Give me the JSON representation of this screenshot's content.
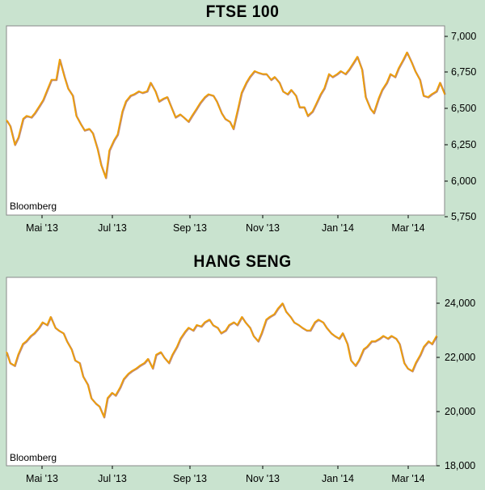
{
  "chart_data": [
    {
      "type": "line",
      "title": "FTSE 100",
      "source": "Bloomberg",
      "x_ticks": [
        "Mai '13",
        "Jul '13",
        "Sep '13",
        "Nov '13",
        "Jan '14",
        "Mar '14"
      ],
      "y_ticks": [
        "7,000",
        "6,750",
        "6,500",
        "6,250",
        "6,000",
        "5,750"
      ],
      "ylim": [
        5750,
        7000
      ],
      "grid": false,
      "line_color": "#f0a000",
      "x": [
        "2013-04-01",
        "2013-04-04",
        "2013-04-08",
        "2013-04-11",
        "2013-04-15",
        "2013-04-18",
        "2013-04-22",
        "2013-04-25",
        "2013-04-29",
        "2013-05-02",
        "2013-05-06",
        "2013-05-09",
        "2013-05-13",
        "2013-05-16",
        "2013-05-20",
        "2013-05-23",
        "2013-05-27",
        "2013-05-30",
        "2013-06-03",
        "2013-06-06",
        "2013-06-10",
        "2013-06-13",
        "2013-06-17",
        "2013-06-20",
        "2013-06-24",
        "2013-06-27",
        "2013-07-01",
        "2013-07-04",
        "2013-07-08",
        "2013-07-11",
        "2013-07-15",
        "2013-07-18",
        "2013-07-22",
        "2013-07-25",
        "2013-07-29",
        "2013-08-01",
        "2013-08-05",
        "2013-08-08",
        "2013-08-12",
        "2013-08-15",
        "2013-08-19",
        "2013-08-22",
        "2013-08-26",
        "2013-08-29",
        "2013-09-02",
        "2013-09-05",
        "2013-09-09",
        "2013-09-12",
        "2013-09-16",
        "2013-09-19",
        "2013-09-23",
        "2013-09-26",
        "2013-09-30",
        "2013-10-03",
        "2013-10-07",
        "2013-10-10",
        "2013-10-14",
        "2013-10-17",
        "2013-10-21",
        "2013-10-24",
        "2013-10-28",
        "2013-10-31",
        "2013-11-04",
        "2013-11-07",
        "2013-11-11",
        "2013-11-14",
        "2013-11-18",
        "2013-11-21",
        "2013-11-25",
        "2013-11-28",
        "2013-12-02",
        "2013-12-05",
        "2013-12-09",
        "2013-12-12",
        "2013-12-16",
        "2013-12-19",
        "2013-12-23",
        "2013-12-26",
        "2013-12-30",
        "2014-01-02",
        "2014-01-06",
        "2014-01-09",
        "2014-01-13",
        "2014-01-16",
        "2014-01-20",
        "2014-01-23",
        "2014-01-27",
        "2014-01-30",
        "2014-02-03",
        "2014-02-06",
        "2014-02-10",
        "2014-02-13",
        "2014-02-17",
        "2014-02-20",
        "2014-02-24",
        "2014-02-27",
        "2014-03-03",
        "2014-03-06",
        "2014-03-10",
        "2014-03-13",
        "2014-03-17",
        "2014-03-20",
        "2014-03-24",
        "2014-03-27",
        "2014-03-31",
        "2014-04-03",
        "2014-04-07"
      ],
      "values": [
        6420,
        6380,
        6250,
        6300,
        6430,
        6450,
        6440,
        6470,
        6520,
        6560,
        6640,
        6700,
        6700,
        6840,
        6720,
        6640,
        6590,
        6450,
        6390,
        6350,
        6360,
        6330,
        6220,
        6110,
        6020,
        6210,
        6280,
        6320,
        6480,
        6550,
        6590,
        6600,
        6620,
        6610,
        6620,
        6680,
        6620,
        6550,
        6570,
        6580,
        6500,
        6440,
        6460,
        6440,
        6410,
        6450,
        6500,
        6540,
        6580,
        6600,
        6590,
        6550,
        6470,
        6430,
        6410,
        6360,
        6500,
        6610,
        6680,
        6720,
        6760,
        6750,
        6740,
        6740,
        6700,
        6720,
        6680,
        6620,
        6600,
        6630,
        6590,
        6510,
        6510,
        6450,
        6480,
        6530,
        6600,
        6640,
        6740,
        6720,
        6740,
        6760,
        6740,
        6770,
        6820,
        6860,
        6770,
        6580,
        6500,
        6470,
        6570,
        6630,
        6680,
        6740,
        6720,
        6780,
        6840,
        6890,
        6820,
        6760,
        6700,
        6590,
        6580,
        6600,
        6620,
        6680,
        6600
      ]
    },
    {
      "type": "line",
      "title": "HANG SENG",
      "source": "Bloomberg",
      "x_ticks": [
        "Mai '13",
        "Jul '13",
        "Sep '13",
        "Nov '13",
        "Jan '14",
        "Mar '14"
      ],
      "y_ticks": [
        "24,000",
        "22,000",
        "20,000",
        "18,000"
      ],
      "ylim": [
        18000,
        24500
      ],
      "grid": false,
      "line_color": "#f0a000",
      "x": [
        "2013-04-01",
        "2013-04-04",
        "2013-04-08",
        "2013-04-11",
        "2013-04-15",
        "2013-04-18",
        "2013-04-22",
        "2013-04-25",
        "2013-04-29",
        "2013-05-02",
        "2013-05-06",
        "2013-05-09",
        "2013-05-13",
        "2013-05-16",
        "2013-05-20",
        "2013-05-23",
        "2013-05-27",
        "2013-05-30",
        "2013-06-03",
        "2013-06-06",
        "2013-06-10",
        "2013-06-13",
        "2013-06-17",
        "2013-06-20",
        "2013-06-24",
        "2013-06-27",
        "2013-07-01",
        "2013-07-04",
        "2013-07-08",
        "2013-07-11",
        "2013-07-15",
        "2013-07-18",
        "2013-07-22",
        "2013-07-25",
        "2013-07-29",
        "2013-08-01",
        "2013-08-05",
        "2013-08-08",
        "2013-08-12",
        "2013-08-15",
        "2013-08-19",
        "2013-08-22",
        "2013-08-26",
        "2013-08-29",
        "2013-09-02",
        "2013-09-05",
        "2013-09-09",
        "2013-09-12",
        "2013-09-16",
        "2013-09-19",
        "2013-09-23",
        "2013-09-26",
        "2013-09-30",
        "2013-10-03",
        "2013-10-07",
        "2013-10-10",
        "2013-10-14",
        "2013-10-17",
        "2013-10-21",
        "2013-10-24",
        "2013-10-28",
        "2013-10-31",
        "2013-11-04",
        "2013-11-07",
        "2013-11-11",
        "2013-11-14",
        "2013-11-18",
        "2013-11-21",
        "2013-11-25",
        "2013-11-28",
        "2013-12-02",
        "2013-12-05",
        "2013-12-09",
        "2013-12-12",
        "2013-12-16",
        "2013-12-19",
        "2013-12-23",
        "2013-12-26",
        "2013-12-30",
        "2014-01-02",
        "2014-01-06",
        "2014-01-09",
        "2014-01-13",
        "2014-01-16",
        "2014-01-20",
        "2014-01-23",
        "2014-01-27",
        "2014-01-30",
        "2014-02-03",
        "2014-02-06",
        "2014-02-10",
        "2014-02-13",
        "2014-02-17",
        "2014-02-20",
        "2014-02-24",
        "2014-02-27",
        "2014-03-03",
        "2014-03-06",
        "2014-03-10",
        "2014-03-13",
        "2014-03-17",
        "2014-03-20",
        "2014-03-24",
        "2014-03-27",
        "2014-03-31",
        "2014-04-03",
        "2014-04-07"
      ],
      "values": [
        22200,
        21800,
        21700,
        22100,
        22500,
        22600,
        22800,
        22900,
        23100,
        23300,
        23200,
        23500,
        23100,
        23000,
        22900,
        22600,
        22300,
        21900,
        21800,
        21300,
        21000,
        20500,
        20300,
        20200,
        19800,
        20500,
        20700,
        20600,
        20900,
        21200,
        21400,
        21500,
        21600,
        21700,
        21800,
        21950,
        21600,
        22100,
        22200,
        22000,
        21800,
        22100,
        22400,
        22700,
        22950,
        23100,
        23000,
        23200,
        23150,
        23300,
        23400,
        23200,
        23100,
        22900,
        23000,
        23200,
        23300,
        23200,
        23500,
        23300,
        23100,
        22800,
        22600,
        22900,
        23400,
        23500,
        23600,
        23800,
        24000,
        23700,
        23500,
        23300,
        23200,
        23100,
        23000,
        23000,
        23300,
        23400,
        23300,
        23100,
        22900,
        22800,
        22700,
        22900,
        22500,
        21900,
        21700,
        21900,
        22300,
        22400,
        22600,
        22600,
        22700,
        22800,
        22700,
        22800,
        22700,
        22500,
        21800,
        21600,
        21500,
        21800,
        22100,
        22400,
        22600,
        22500,
        22800
      ]
    }
  ]
}
